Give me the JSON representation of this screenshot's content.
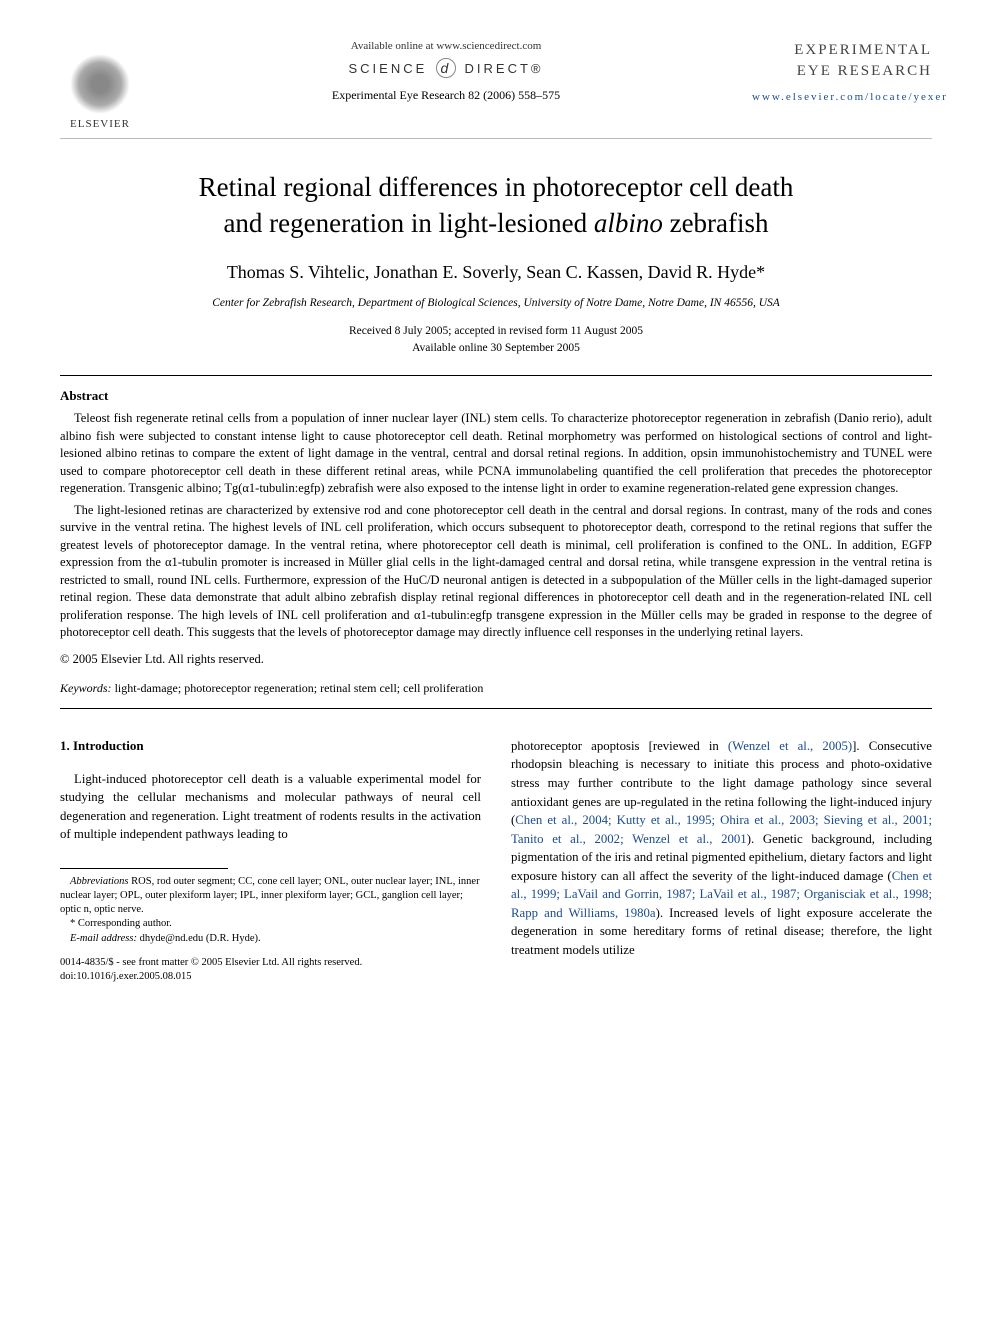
{
  "header": {
    "publisher": "ELSEVIER",
    "availability": "Available online at www.sciencedirect.com",
    "sd_left": "SCIENCE",
    "sd_right": "DIRECT®",
    "journal_ref": "Experimental Eye Research 82 (2006) 558–575",
    "journal_brand_line1": "EXPERIMENTAL",
    "journal_brand_line2": "EYE RESEARCH",
    "journal_url": "www.elsevier.com/locate/yexer"
  },
  "title": {
    "line1": "Retinal regional differences in photoreceptor cell death",
    "line2_pre": "and regeneration in light-lesioned ",
    "line2_italic": "albino",
    "line2_post": " zebrafish"
  },
  "authors": "Thomas S. Vihtelic, Jonathan E. Soverly, Sean C. Kassen, David R. Hyde*",
  "affiliation": "Center for Zebrafish Research, Department of Biological Sciences, University of Notre Dame, Notre Dame, IN 46556, USA",
  "dates": {
    "received": "Received 8 July 2005; accepted in revised form 11 August 2005",
    "available": "Available online 30 September 2005"
  },
  "abstract": {
    "heading": "Abstract",
    "p1": "Teleost fish regenerate retinal cells from a population of inner nuclear layer (INL) stem cells. To characterize photoreceptor regeneration in zebrafish (Danio rerio), adult albino fish were subjected to constant intense light to cause photoreceptor cell death. Retinal morphometry was performed on histological sections of control and light-lesioned albino retinas to compare the extent of light damage in the ventral, central and dorsal retinal regions. In addition, opsin immunohistochemistry and TUNEL were used to compare photoreceptor cell death in these different retinal areas, while PCNA immunolabeling quantified the cell proliferation that precedes the photoreceptor regeneration. Transgenic albino; Tg(α1-tubulin:egfp) zebrafish were also exposed to the intense light in order to examine regeneration-related gene expression changes.",
    "p2": "The light-lesioned retinas are characterized by extensive rod and cone photoreceptor cell death in the central and dorsal regions. In contrast, many of the rods and cones survive in the ventral retina. The highest levels of INL cell proliferation, which occurs subsequent to photoreceptor death, correspond to the retinal regions that suffer the greatest levels of photoreceptor damage. In the ventral retina, where photoreceptor cell death is minimal, cell proliferation is confined to the ONL. In addition, EGFP expression from the α1-tubulin promoter is increased in Müller glial cells in the light-damaged central and dorsal retina, while transgene expression in the ventral retina is restricted to small, round INL cells. Furthermore, expression of the HuC/D neuronal antigen is detected in a subpopulation of the Müller cells in the light-damaged superior retinal region. These data demonstrate that adult albino zebrafish display retinal regional differences in photoreceptor cell death and in the regeneration-related INL cell proliferation response. The high levels of INL cell proliferation and α1-tubulin:egfp transgene expression in the Müller cells may be graded in response to the degree of photoreceptor cell death. This suggests that the levels of photoreceptor damage may directly influence cell responses in the underlying retinal layers.",
    "copyright": "© 2005 Elsevier Ltd. All rights reserved."
  },
  "keywords": {
    "label": "Keywords:",
    "text": " light-damage; photoreceptor regeneration; retinal stem cell; cell proliferation"
  },
  "intro": {
    "heading": "1. Introduction",
    "left_para": "Light-induced photoreceptor cell death is a valuable experimental model for studying the cellular mechanisms and molecular pathways of neural cell degeneration and regeneration. Light treatment of rodents results in the activation of multiple independent pathways leading to",
    "right_para_pre": "photoreceptor apoptosis [reviewed in ",
    "right_ref1": "(Wenzel et al., 2005)",
    "right_para_mid1": "]. Consecutive rhodopsin bleaching is necessary to initiate this process and photo-oxidative stress may further contribute to the light damage pathology since several antioxidant genes are up-regulated in the retina following the light-induced injury (",
    "right_ref2": "Chen et al., 2004; Kutty et al., 1995; Ohira et al., 2003; Sieving et al., 2001; Tanito et al., 2002; Wenzel et al., 2001",
    "right_para_mid2": "). Genetic background, including pigmentation of the iris and retinal pigmented epithelium, dietary factors and light exposure history can all affect the severity of the light-induced damage (",
    "right_ref3": "Chen et al., 1999; LaVail and Gorrin, 1987; LaVail et al., 1987; Organisciak et al., 1998; Rapp and Williams, 1980a",
    "right_para_end": "). Increased levels of light exposure accelerate the degeneration in some hereditary forms of retinal disease; therefore, the light treatment models utilize"
  },
  "footnotes": {
    "abbrev_label": "Abbreviations",
    "abbrev_text": " ROS, rod outer segment; CC, cone cell layer; ONL, outer nuclear layer; INL, inner nuclear layer; OPL, outer plexiform layer; IPL, inner plexiform layer; GCL, ganglion cell layer; optic n, optic nerve.",
    "corresponding": "* Corresponding author.",
    "email_label": "E-mail address:",
    "email": " dhyde@nd.edu (D.R. Hyde).",
    "issn": "0014-4835/$ - see front matter © 2005 Elsevier Ltd. All rights reserved.",
    "doi": "doi:10.1016/j.exer.2005.08.015"
  },
  "colors": {
    "link": "#1a4b8e",
    "text": "#000000",
    "background": "#ffffff"
  }
}
